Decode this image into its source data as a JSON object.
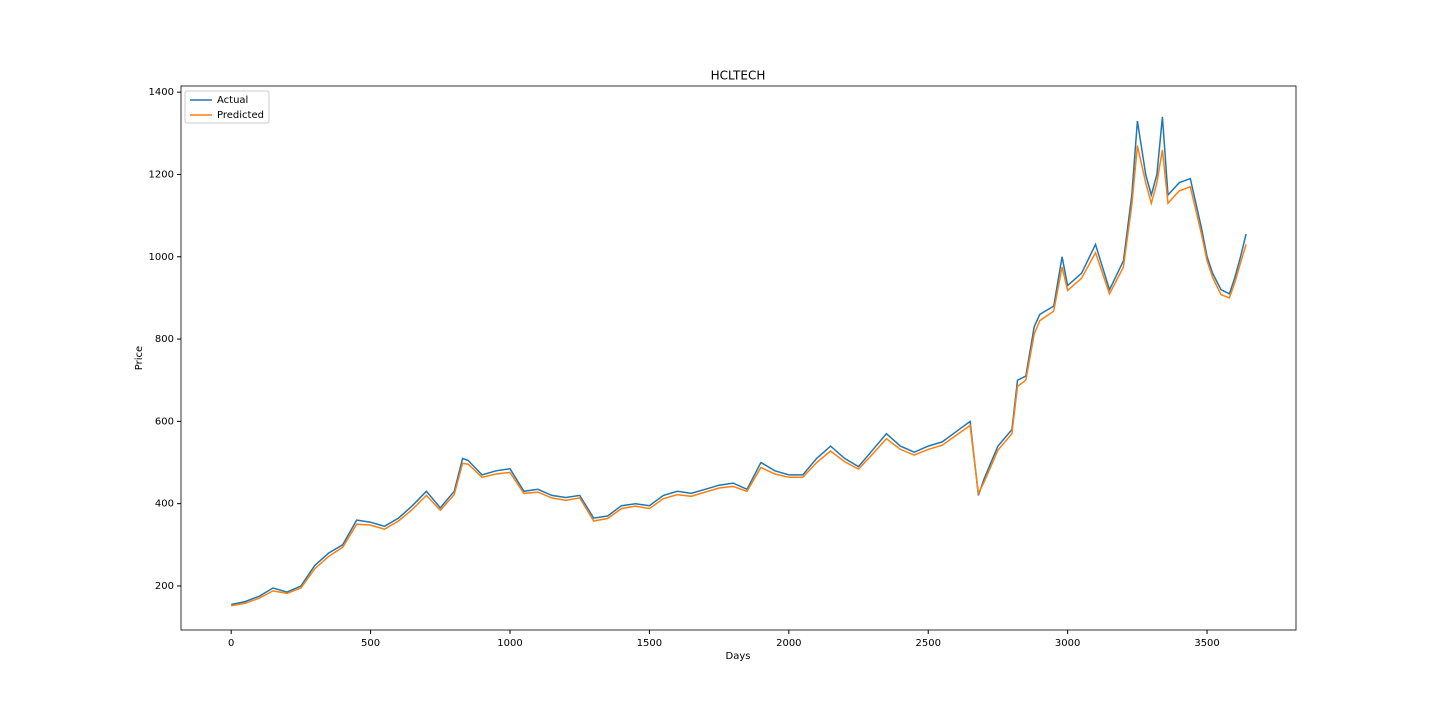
{
  "chart_data": {
    "type": "line",
    "title": "HCLTECH",
    "x_label": "Days",
    "y_label": "Price",
    "x": [
      0,
      50,
      100,
      150,
      200,
      250,
      300,
      350,
      400,
      450,
      500,
      550,
      600,
      650,
      700,
      750,
      800,
      830,
      850,
      900,
      950,
      1000,
      1050,
      1100,
      1150,
      1200,
      1250,
      1300,
      1350,
      1400,
      1450,
      1500,
      1550,
      1600,
      1650,
      1700,
      1750,
      1800,
      1850,
      1900,
      1950,
      2000,
      2050,
      2100,
      2150,
      2200,
      2250,
      2300,
      2350,
      2400,
      2450,
      2500,
      2550,
      2600,
      2650,
      2680,
      2700,
      2750,
      2800,
      2820,
      2850,
      2880,
      2900,
      2950,
      2980,
      3000,
      3050,
      3100,
      3150,
      3200,
      3230,
      3250,
      3280,
      3300,
      3320,
      3340,
      3360,
      3400,
      3440,
      3480,
      3500,
      3520,
      3550,
      3580,
      3600,
      3620,
      3640
    ],
    "series": [
      {
        "name": "Actual",
        "color": "#1f77b4",
        "values": [
          155,
          162,
          175,
          195,
          185,
          200,
          250,
          280,
          300,
          360,
          355,
          345,
          365,
          395,
          430,
          390,
          430,
          510,
          505,
          470,
          480,
          485,
          430,
          435,
          420,
          415,
          420,
          365,
          370,
          395,
          400,
          395,
          420,
          430,
          425,
          435,
          445,
          450,
          435,
          500,
          480,
          470,
          470,
          510,
          540,
          510,
          490,
          530,
          570,
          540,
          525,
          540,
          550,
          575,
          600,
          420,
          460,
          540,
          580,
          700,
          710,
          830,
          860,
          880,
          1000,
          930,
          960,
          1030,
          920,
          990,
          1150,
          1330,
          1200,
          1150,
          1200,
          1340,
          1150,
          1180,
          1190,
          1070,
          1000,
          960,
          920,
          910,
          950,
          1000,
          1055
        ]
      },
      {
        "name": "Predicted",
        "color": "#ff7f0e",
        "values": [
          152,
          158,
          170,
          188,
          182,
          195,
          242,
          272,
          294,
          350,
          348,
          338,
          358,
          386,
          420,
          384,
          422,
          498,
          496,
          464,
          472,
          476,
          425,
          428,
          414,
          408,
          414,
          358,
          364,
          388,
          394,
          388,
          412,
          422,
          418,
          428,
          438,
          442,
          430,
          488,
          472,
          464,
          464,
          500,
          528,
          502,
          484,
          520,
          558,
          532,
          518,
          532,
          542,
          566,
          590,
          425,
          452,
          530,
          570,
          685,
          700,
          812,
          845,
          868,
          975,
          918,
          948,
          1010,
          910,
          975,
          1125,
          1270,
          1180,
          1130,
          1180,
          1260,
          1130,
          1160,
          1170,
          1055,
          990,
          950,
          908,
          900,
          938,
          985,
          1030
        ]
      }
    ],
    "xlim": [
      -180,
      3819
    ],
    "ylim": [
      93,
      1415
    ],
    "xticks": [
      0,
      500,
      1000,
      1500,
      2000,
      2500,
      3000,
      3500
    ],
    "yticks": [
      200,
      400,
      600,
      800,
      1000,
      1200,
      1400
    ],
    "legend": "upper left"
  }
}
